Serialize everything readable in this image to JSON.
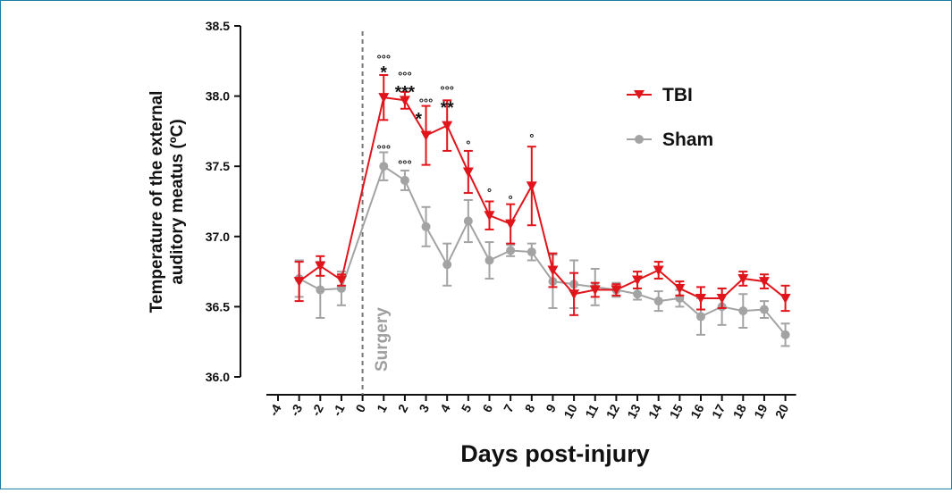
{
  "chart_data": {
    "type": "line",
    "xlabel": "Days post-injury",
    "ylabel_line1": "Temperature of the external",
    "ylabel_line2": "auditory meatus (ºC)",
    "ylim": [
      36.0,
      38.5
    ],
    "yticks": [
      "36.0",
      "36.5",
      "37.0",
      "37.5",
      "38.0",
      "38.5"
    ],
    "x_ticks": [
      -4,
      -3,
      -2,
      -1,
      0,
      1,
      2,
      3,
      4,
      5,
      6,
      7,
      8,
      9,
      10,
      11,
      12,
      13,
      14,
      15,
      16,
      17,
      18,
      19,
      20
    ],
    "surgery_label": "Surgery",
    "surgery_day": 0,
    "legend_position": "top-right",
    "series": [
      {
        "name": "TBI",
        "color": "#e0141b",
        "marker": "triangle-down",
        "x": [
          -3,
          -2,
          -1,
          1,
          2,
          3,
          4,
          5,
          6,
          7,
          8,
          9,
          10,
          11,
          12,
          13,
          14,
          15,
          16,
          17,
          18,
          19,
          20
        ],
        "values": [
          36.68,
          36.79,
          36.69,
          37.99,
          37.97,
          37.72,
          37.79,
          37.46,
          37.15,
          37.09,
          37.36,
          36.76,
          36.59,
          36.62,
          36.62,
          36.69,
          36.76,
          36.63,
          36.56,
          36.56,
          36.7,
          36.68,
          36.56
        ],
        "error": [
          0.14,
          0.07,
          0.04,
          0.16,
          0.06,
          0.21,
          0.18,
          0.15,
          0.1,
          0.14,
          0.28,
          0.12,
          0.15,
          0.05,
          0.04,
          0.06,
          0.06,
          0.05,
          0.08,
          0.07,
          0.05,
          0.05,
          0.09
        ]
      },
      {
        "name": "Sham",
        "color": "#a3a3a3",
        "marker": "circle",
        "x": [
          -3,
          -2,
          -1,
          1,
          2,
          3,
          4,
          5,
          6,
          7,
          8,
          9,
          10,
          11,
          12,
          13,
          14,
          15,
          16,
          17,
          18,
          19,
          20
        ],
        "values": [
          36.7,
          36.62,
          36.63,
          37.5,
          37.4,
          37.07,
          36.8,
          37.11,
          36.83,
          36.9,
          36.89,
          36.68,
          36.66,
          36.64,
          36.62,
          36.59,
          36.54,
          36.56,
          36.43,
          36.5,
          36.47,
          36.48,
          36.3
        ]
      }
    ],
    "annotations": [
      {
        "x": 1,
        "y": 38.19,
        "text": "*",
        "size": "big"
      },
      {
        "x": 1,
        "y": 38.26,
        "text": "°°°",
        "size": "small"
      },
      {
        "x": 2,
        "y": 38.05,
        "text": "***",
        "size": "big"
      },
      {
        "x": 2,
        "y": 38.14,
        "text": "°°°",
        "size": "small"
      },
      {
        "x": 3,
        "y": 37.95,
        "text": "°°°",
        "size": "small"
      },
      {
        "x": 2.65,
        "y": 37.86,
        "text": "*",
        "size": "big"
      },
      {
        "x": 4,
        "y": 37.94,
        "text": "**",
        "size": "big"
      },
      {
        "x": 4,
        "y": 38.04,
        "text": "°°°",
        "size": "small"
      },
      {
        "x": 5,
        "y": 37.65,
        "text": "°",
        "size": "small"
      },
      {
        "x": 6,
        "y": 37.31,
        "text": "°",
        "size": "small"
      },
      {
        "x": 7,
        "y": 37.26,
        "text": "°",
        "size": "small"
      },
      {
        "x": 8,
        "y": 37.7,
        "text": "°",
        "size": "small"
      },
      {
        "x": 1,
        "y": 37.62,
        "text": "°°°",
        "size": "small"
      },
      {
        "x": 2,
        "y": 37.51,
        "text": "°°°",
        "size": "small"
      }
    ]
  }
}
